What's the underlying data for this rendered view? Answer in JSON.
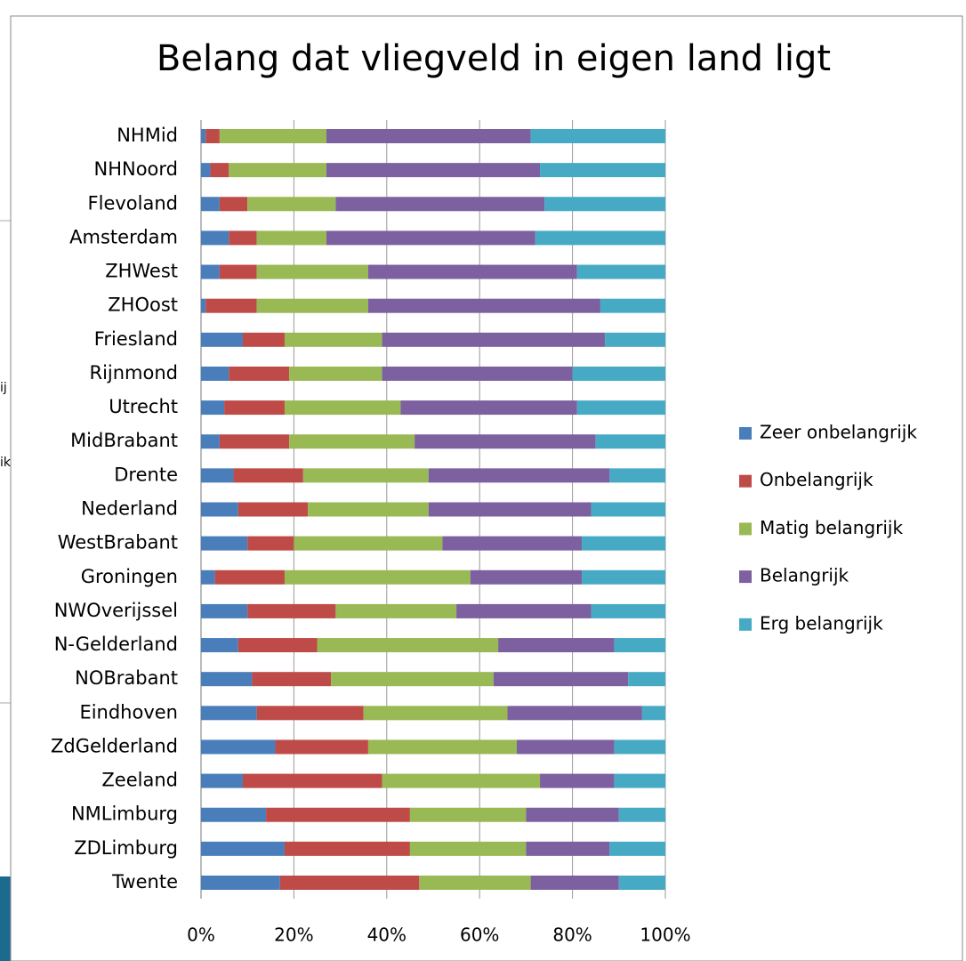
{
  "background_text": [
    "ij",
    "ik"
  ],
  "chart_data": {
    "type": "bar",
    "orientation": "horizontal",
    "stacked": true,
    "title": "Belang dat vliegveld in eigen land ligt",
    "categories": [
      "NHMid",
      "NHNoord",
      "Flevoland",
      "Amsterdam",
      "ZHWest",
      "ZHOost",
      "Friesland",
      "Rijnmond",
      "Utrecht",
      "MidBrabant",
      "Drente",
      "Nederland",
      "WestBrabant",
      "Groningen",
      "NWOverijssel",
      "N-Gelderland",
      "NOBrabant",
      "Eindhoven",
      "ZdGelderland",
      "Zeeland",
      "NMLimburg",
      "ZDLimburg",
      "Twente"
    ],
    "series": [
      {
        "name": "Zeer onbelangrijk",
        "color": "#4a7ebb",
        "values": [
          1,
          2,
          4,
          6,
          4,
          1,
          9,
          6,
          5,
          4,
          7,
          8,
          10,
          3,
          10,
          8,
          11,
          12,
          16,
          9,
          14,
          18,
          17
        ]
      },
      {
        "name": "Onbelangrijk",
        "color": "#be4b48",
        "values": [
          3,
          4,
          6,
          6,
          8,
          11,
          9,
          13,
          13,
          15,
          15,
          15,
          10,
          15,
          19,
          17,
          17,
          23,
          20,
          30,
          31,
          27,
          30
        ]
      },
      {
        "name": "Matig belangrijk",
        "color": "#98b954",
        "values": [
          23,
          21,
          19,
          15,
          24,
          24,
          21,
          20,
          25,
          27,
          27,
          26,
          32,
          40,
          26,
          39,
          35,
          31,
          32,
          34,
          25,
          25,
          24
        ]
      },
      {
        "name": "Belangrijk",
        "color": "#7d60a0",
        "values": [
          44,
          46,
          45,
          45,
          45,
          50,
          48,
          41,
          38,
          39,
          39,
          35,
          30,
          24,
          29,
          25,
          29,
          29,
          21,
          16,
          20,
          18,
          19
        ]
      },
      {
        "name": "Erg belangrijk",
        "color": "#46aac5",
        "values": [
          29,
          27,
          26,
          28,
          19,
          14,
          13,
          20,
          19,
          15,
          12,
          16,
          18,
          18,
          16,
          11,
          8,
          5,
          11,
          11,
          10,
          12,
          10
        ]
      }
    ],
    "xlim": [
      0,
      100
    ],
    "xticks": [
      {
        "value": 0,
        "label": "0%"
      },
      {
        "value": 20,
        "label": "20%"
      },
      {
        "value": 40,
        "label": "40%"
      },
      {
        "value": 60,
        "label": "60%"
      },
      {
        "value": 80,
        "label": "80%"
      },
      {
        "value": 100,
        "label": "100%"
      }
    ],
    "grid": true,
    "legend": "right"
  }
}
